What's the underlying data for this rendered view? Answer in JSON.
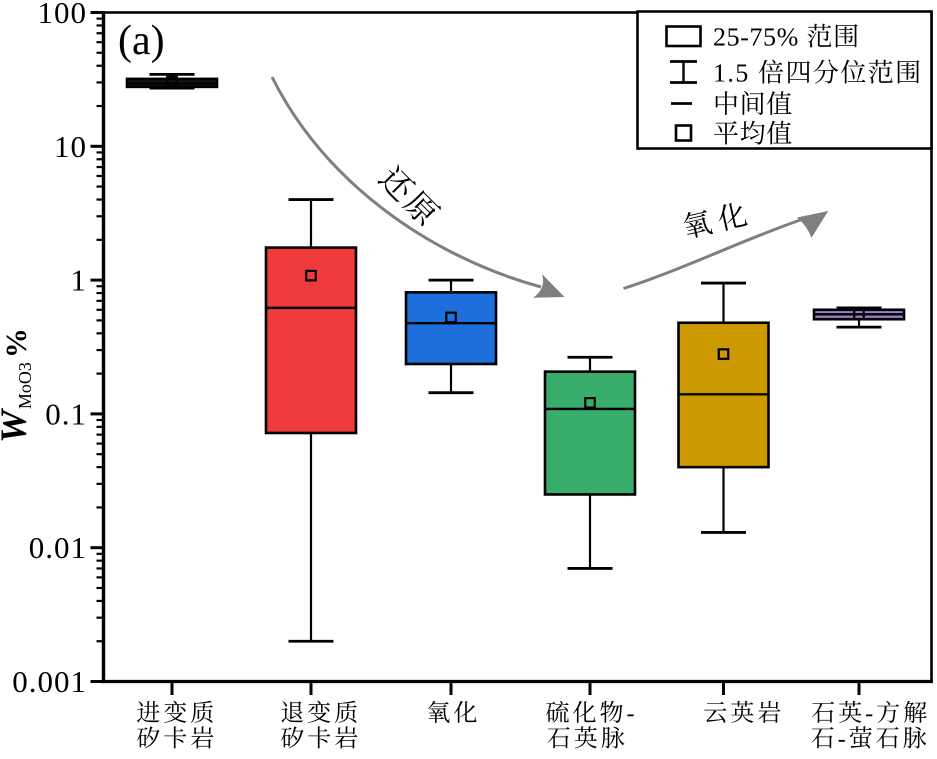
{
  "figure": {
    "panel_label": "(a)",
    "background_color": "#ffffff"
  },
  "chart_data": {
    "type": "box",
    "title": "",
    "y_axis": {
      "scale": "log",
      "ylim": [
        0.001,
        100
      ],
      "label_main": "W",
      "label_sub": "MoO3",
      "label_unit": "%",
      "tick_labels": [
        "100",
        "10",
        "1",
        "0.1",
        "0.01",
        "0.001"
      ],
      "tick_values": [
        100,
        10,
        1,
        0.1,
        0.01,
        0.001
      ]
    },
    "categories": [
      {
        "label_line1": "进变质",
        "label_line2": "矽卡岩"
      },
      {
        "label_line1": "退变质",
        "label_line2": "矽卡岩"
      },
      {
        "label_line1": "氧化",
        "label_line2": ""
      },
      {
        "label_line1": "硫化物-",
        "label_line2": "石英脉"
      },
      {
        "label_line1": "云英岩",
        "label_line2": ""
      },
      {
        "label_line1": "石英-方解",
        "label_line2": "石-萤石脉"
      }
    ],
    "series": [
      {
        "name": "进变质矽卡岩",
        "color": "#141414",
        "whisker_low": 27.2,
        "q1": 27.8,
        "median": 29.5,
        "mean": 30.5,
        "q3": 31.9,
        "whisker_high": 34.5
      },
      {
        "name": "退变质矽卡岩",
        "color": "#EF3B3B",
        "whisker_low": 0.002,
        "q1": 0.072,
        "median": 0.62,
        "mean": 1.08,
        "q3": 1.75,
        "whisker_high": 4.0
      },
      {
        "name": "氧化",
        "color": "#1D6FDC",
        "whisker_low": 0.144,
        "q1": 0.236,
        "median": 0.476,
        "mean": 0.526,
        "q3": 0.81,
        "whisker_high": 1.0
      },
      {
        "name": "硫化物-石英脉",
        "color": "#37AC6B",
        "whisker_low": 0.007,
        "q1": 0.025,
        "median": 0.109,
        "mean": 0.121,
        "q3": 0.207,
        "whisker_high": 0.265
      },
      {
        "name": "云英岩",
        "color": "#CC9A00",
        "whisker_low": 0.013,
        "q1": 0.04,
        "median": 0.14,
        "mean": 0.28,
        "q3": 0.48,
        "whisker_high": 0.95
      },
      {
        "name": "石英-方解石-萤石脉",
        "color": "#9B7CC8",
        "whisker_low": 0.445,
        "q1": 0.51,
        "median": 0.555,
        "mean": 0.555,
        "q3": 0.6,
        "whisker_high": 0.62
      }
    ]
  },
  "legend": {
    "items": [
      {
        "symbol": "box-range",
        "label": "25-75% 范围"
      },
      {
        "symbol": "whisker-range",
        "label": "1.5 倍四分位范围"
      },
      {
        "symbol": "median-line",
        "label": "中间值"
      },
      {
        "symbol": "mean-square",
        "label": "平均值"
      }
    ]
  },
  "annotations": {
    "reduction_arrow_label": "还原",
    "oxidation_arrow_label": "氧化",
    "arrow_color": "#7f7f7f"
  }
}
